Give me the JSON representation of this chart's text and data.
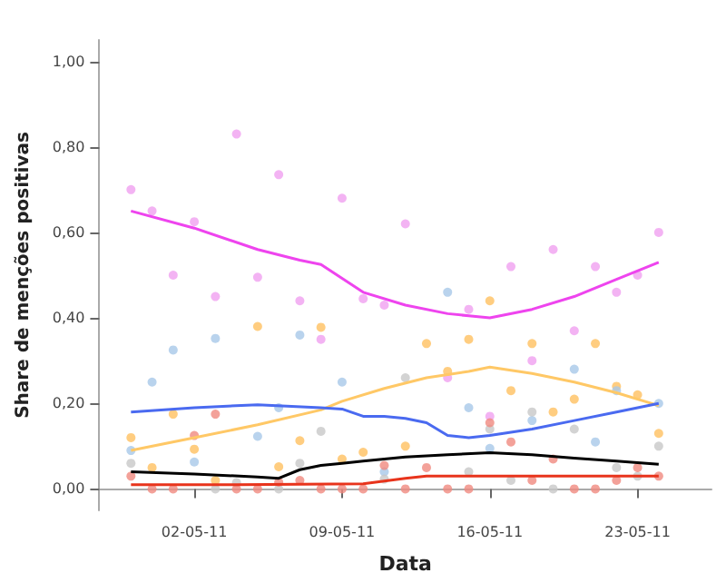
{
  "chart_data": {
    "type": "scatter",
    "xlabel": "Data",
    "ylabel": "Share de menções positivas",
    "marker": "circle",
    "x": [
      "--04-29",
      "--04-30",
      "--05-01",
      "--05-02",
      "--05-03",
      "--05-04",
      "--05-05",
      "--05-06",
      "--05-07",
      "--05-08",
      "--05-09",
      "--05-10",
      "--05-11",
      "--05-12",
      "--05-13",
      "--05-14",
      "--05-15",
      "--05-16",
      "--05-17",
      "--05-18",
      "--05-19",
      "--05-20",
      "--05-21",
      "--05-22",
      "--05-23",
      "--05-24"
    ],
    "xlim": [
      "--04-27T12:00",
      "--05-26T12:00"
    ],
    "xticks": [
      {
        "value": "--05-02",
        "label": "02-05-11"
      },
      {
        "value": "--05-09",
        "label": "09-05-11"
      },
      {
        "value": "--05-16",
        "label": "16-05-11"
      },
      {
        "value": "--05-23",
        "label": "23-05-11"
      }
    ],
    "ylim": [
      -0.05,
      1.05
    ],
    "yticks": [
      {
        "value": 0,
        "label": "0,00"
      },
      {
        "value": 0.2,
        "label": "0,20"
      },
      {
        "value": 0.4,
        "label": "0,40"
      },
      {
        "value": 0.6,
        "label": "0,60"
      },
      {
        "value": 0.8,
        "label": "0,80"
      },
      {
        "value": 1,
        "label": "1,00"
      }
    ],
    "series": [
      {
        "color": "#f0a0f0",
        "values": [
          0.7,
          0.65,
          0.5,
          0.625,
          0.45,
          0.83,
          0.495,
          0.735,
          0.44,
          0.35,
          0.68,
          0.445,
          0.43,
          0.62,
          null,
          0.26,
          0.42,
          0.17,
          0.52,
          0.3,
          0.56,
          0.37,
          0.52,
          0.46,
          0.5,
          0.6
        ]
      },
      {
        "color": "#ffc060",
        "values": [
          0.12,
          0.05,
          0.175,
          0.093,
          0.02,
          null,
          0.38,
          0.052,
          0.113,
          0.378,
          0.07,
          0.086,
          null,
          0.1,
          0.34,
          0.275,
          0.35,
          0.44,
          0.23,
          0.34,
          0.18,
          0.21,
          0.34,
          0.24,
          0.22,
          0.13
        ]
      },
      {
        "color": "#a8c8e8",
        "values": [
          0.09,
          0.25,
          0.325,
          0.063,
          0.352,
          null,
          0.123,
          0.19,
          0.36,
          null,
          0.25,
          null,
          0.04,
          null,
          null,
          0.46,
          0.19,
          0.095,
          null,
          0.16,
          null,
          0.28,
          0.11,
          0.23,
          null,
          0.2
        ]
      },
      {
        "color": "#c8c8c8",
        "values": [
          0.06,
          null,
          null,
          null,
          0,
          0.015,
          null,
          0,
          0.06,
          0.135,
          null,
          null,
          0.023,
          0.26,
          null,
          null,
          0.04,
          0.14,
          0.02,
          0.18,
          0,
          0.14,
          null,
          0.05,
          0.03,
          0.1
        ]
      },
      {
        "color": "#f08a80",
        "values": [
          0.03,
          0,
          0,
          0.125,
          0.175,
          0,
          0,
          0.016,
          0.02,
          0,
          0,
          0,
          0.055,
          0,
          0.05,
          0,
          0,
          0.155,
          0.11,
          0.02,
          0.07,
          0,
          0,
          0.02,
          0.05,
          0.03
        ]
      },
      {
        "type": "line",
        "marker": "none",
        "color": "#ee44ee",
        "x": [
          "--04-29",
          "--05-02",
          "--05-05",
          "--05-07",
          "--05-08",
          "--05-10",
          "--05-12",
          "--05-14",
          "--05-15",
          "--05-16",
          "--05-18",
          "--05-20",
          "--05-22",
          "--05-24"
        ],
        "values": [
          0.65,
          0.61,
          0.56,
          0.535,
          0.525,
          0.46,
          0.43,
          0.41,
          0.405,
          0.4,
          0.42,
          0.45,
          0.49,
          0.53
        ]
      },
      {
        "type": "line",
        "marker": "none",
        "color": "#ffc866",
        "x": [
          "--04-29",
          "--05-02",
          "--05-05",
          "--05-08",
          "--05-09",
          "--05-11",
          "--05-13",
          "--05-15",
          "--05-16",
          "--05-18",
          "--05-20",
          "--05-22",
          "--05-24"
        ],
        "values": [
          0.09,
          0.12,
          0.15,
          0.185,
          0.205,
          0.235,
          0.26,
          0.275,
          0.285,
          0.27,
          0.25,
          0.225,
          0.195
        ]
      },
      {
        "type": "line",
        "marker": "none",
        "color": "#4a6af0",
        "x": [
          "--04-29",
          "--05-02",
          "--05-05",
          "--05-08",
          "--05-09",
          "--05-10",
          "--05-11",
          "--05-12",
          "--05-13",
          "--05-14",
          "--05-15",
          "--05-16",
          "--05-18",
          "--05-20",
          "--05-22",
          "--05-24"
        ],
        "values": [
          0.18,
          0.19,
          0.197,
          0.19,
          0.187,
          0.17,
          0.17,
          0.165,
          0.155,
          0.125,
          0.12,
          0.125,
          0.14,
          0.16,
          0.18,
          0.2
        ]
      },
      {
        "type": "line",
        "marker": "none",
        "color": "#000000",
        "x": [
          "--04-29",
          "--05-02",
          "--05-05",
          "--05-06",
          "--05-07",
          "--05-08",
          "--05-09",
          "--05-10",
          "--05-12",
          "--05-14",
          "--05-16",
          "--05-18",
          "--05-20",
          "--05-22",
          "--05-24"
        ],
        "values": [
          0.04,
          0.035,
          0.028,
          0.025,
          0.045,
          0.055,
          0.06,
          0.065,
          0.075,
          0.08,
          0.085,
          0.08,
          0.072,
          0.065,
          0.058
        ]
      },
      {
        "type": "line",
        "marker": "none",
        "color": "#e8341c",
        "x": [
          "--04-29",
          "--05-04",
          "--05-10",
          "--05-12",
          "--05-13",
          "--05-16",
          "--05-24"
        ],
        "values": [
          0.01,
          0.01,
          0.012,
          0.025,
          0.03,
          0.03,
          0.03
        ]
      }
    ]
  }
}
